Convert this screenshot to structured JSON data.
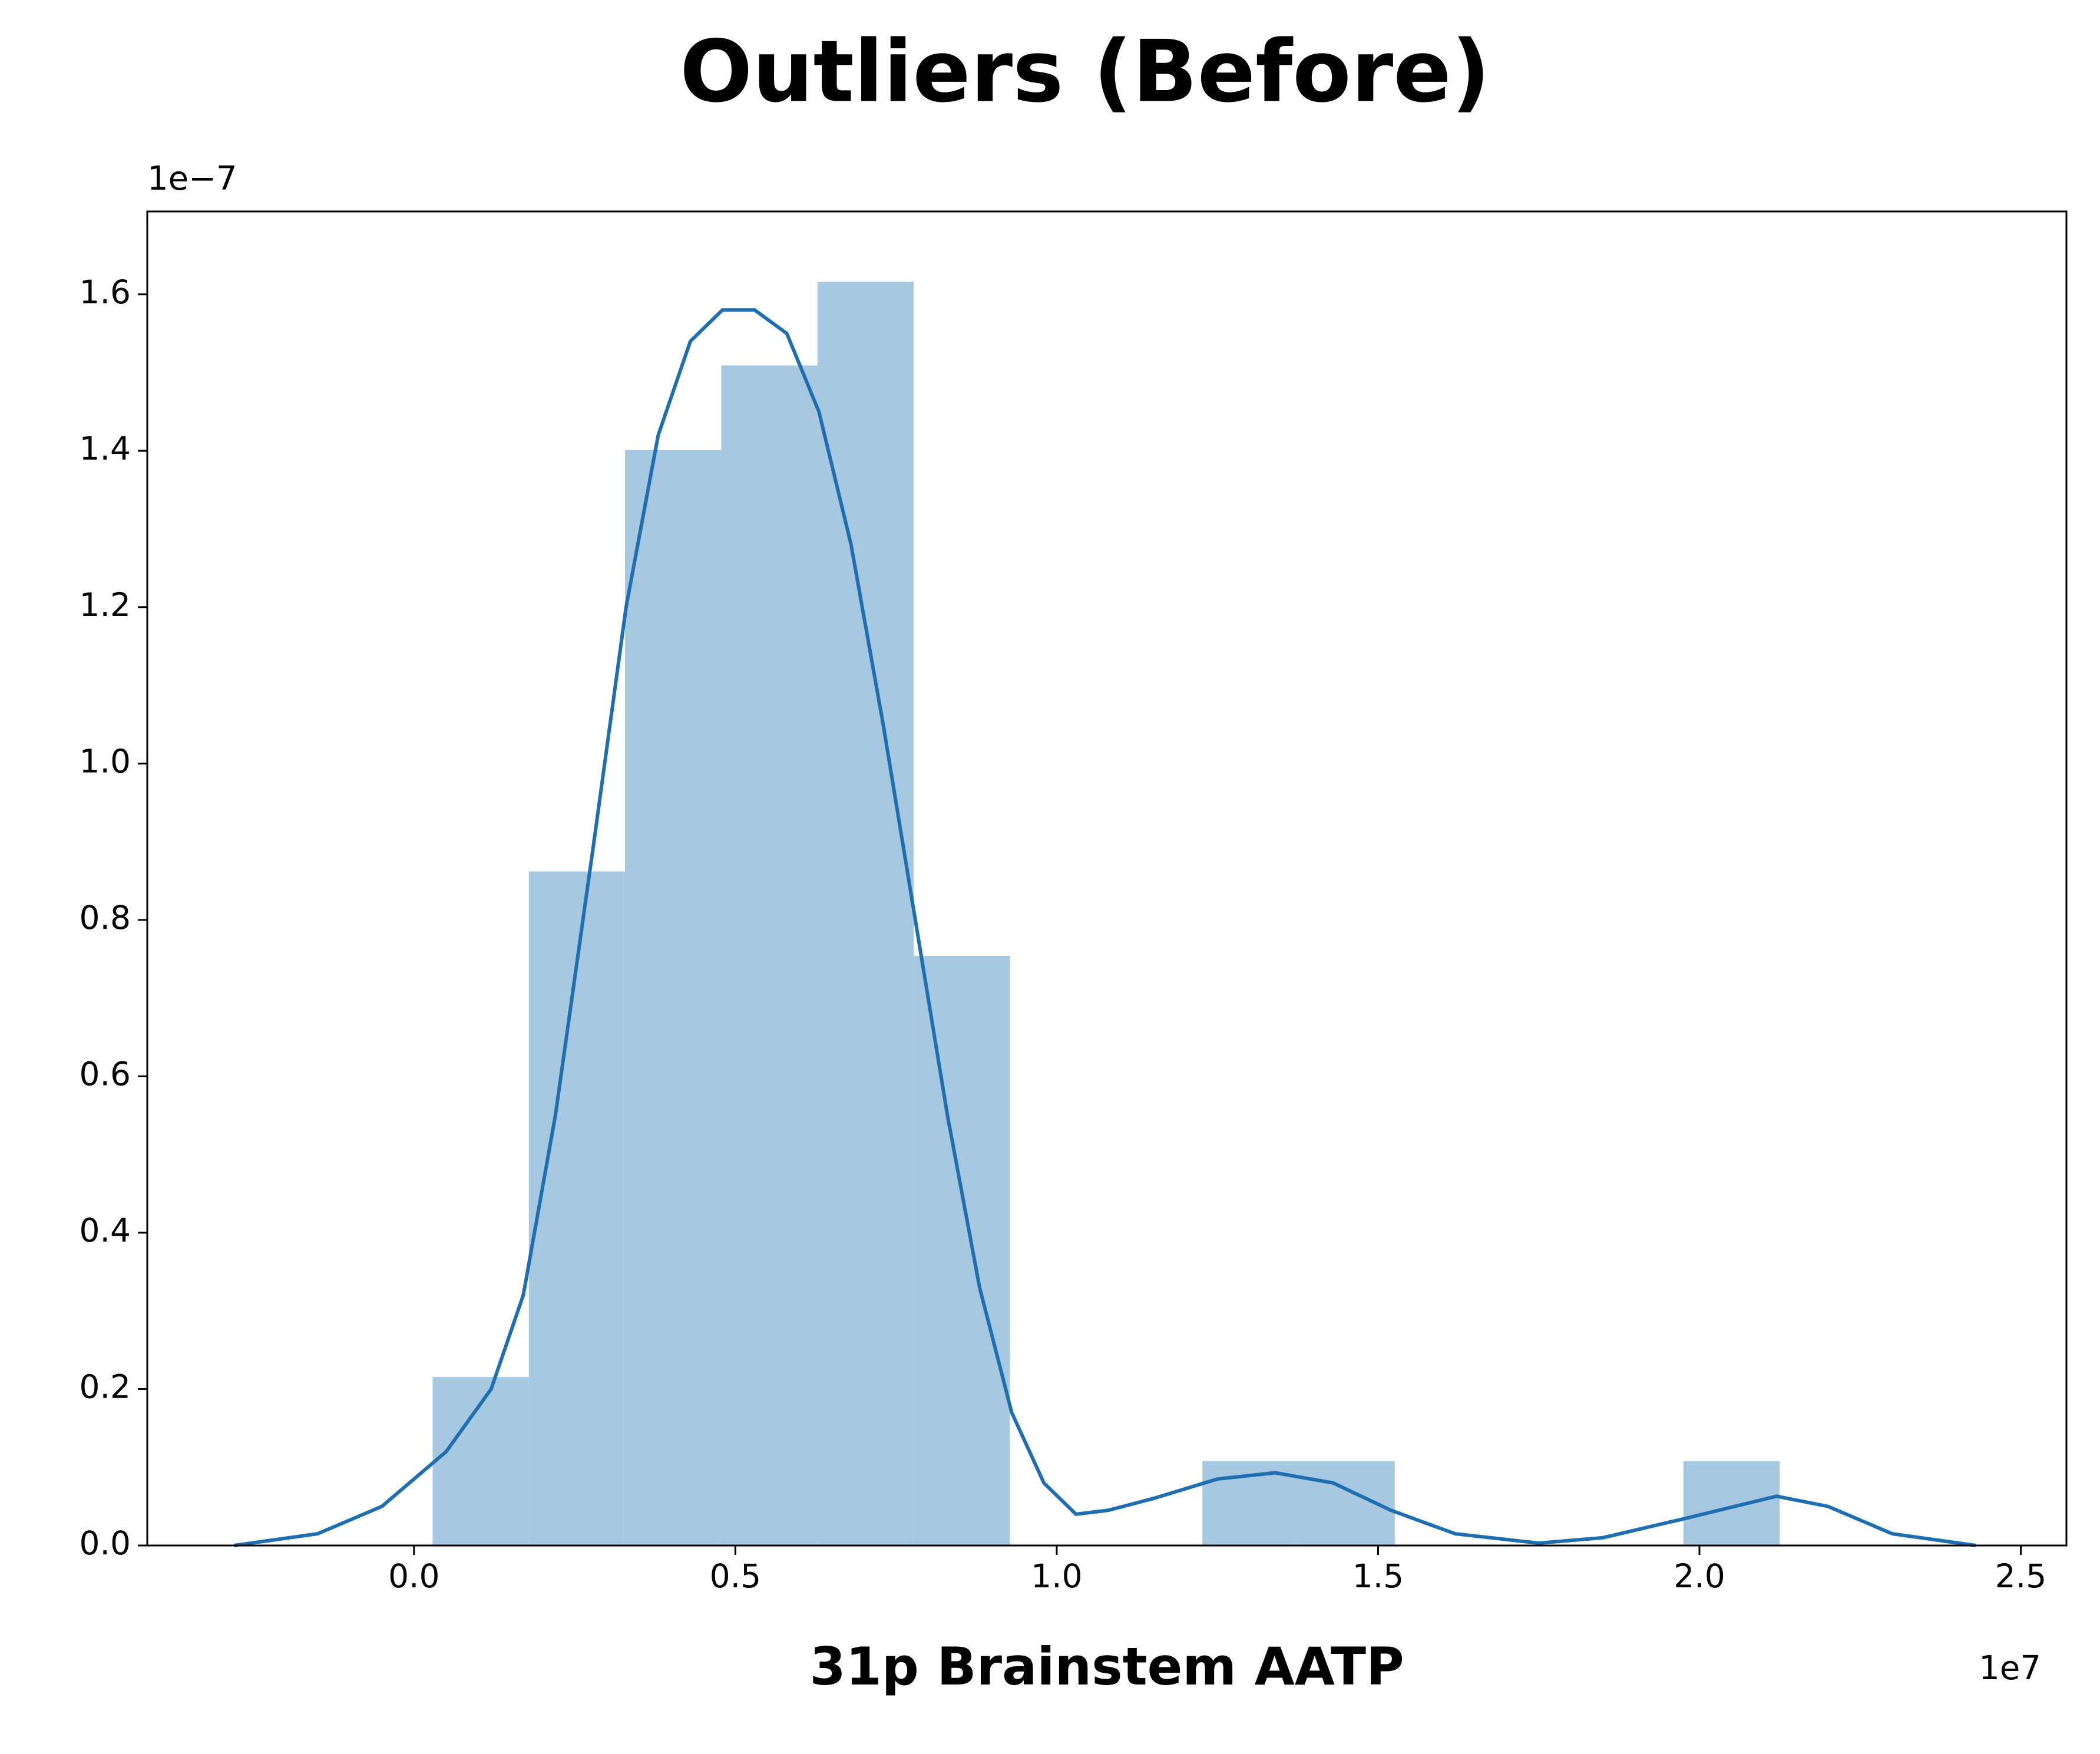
{
  "chart_data": {
    "type": "histogram",
    "title": "Outliers (Before)",
    "x_label": "31p Brainstem AATP",
    "x_offset_label": "1e7",
    "y_offset_label": "1e−7",
    "bins": [
      0.029,
      0.1787,
      0.3284,
      0.4781,
      0.6278,
      0.7775,
      0.9272,
      1.0769,
      1.2266,
      1.3763,
      1.526,
      1.6757,
      1.8254,
      1.9751,
      2.1248
    ],
    "values": [
      0.2155,
      0.862,
      1.401,
      1.509,
      1.616,
      0.754,
      0,
      0,
      0.108,
      0.108,
      0,
      0,
      0,
      0.108
    ],
    "color": "#a6c8e0",
    "kde": {
      "color": "#1f6fb0",
      "x": [
        -0.28,
        -0.15,
        -0.05,
        0.05,
        0.12,
        0.17,
        0.22,
        0.28,
        0.33,
        0.38,
        0.43,
        0.48,
        0.53,
        0.58,
        0.63,
        0.68,
        0.73,
        0.78,
        0.83,
        0.88,
        0.93,
        0.98,
        1.03,
        1.08,
        1.15,
        1.25,
        1.34,
        1.43,
        1.52,
        1.62,
        1.75,
        1.85,
        1.98,
        2.12,
        2.2,
        2.3,
        2.43
      ],
      "y": [
        0.0,
        0.015,
        0.05,
        0.12,
        0.2,
        0.32,
        0.55,
        0.9,
        1.2,
        1.42,
        1.54,
        1.58,
        1.58,
        1.55,
        1.45,
        1.28,
        1.05,
        0.8,
        0.55,
        0.33,
        0.17,
        0.08,
        0.04,
        0.045,
        0.06,
        0.085,
        0.093,
        0.08,
        0.045,
        0.015,
        0.003,
        0.01,
        0.035,
        0.063,
        0.05,
        0.015,
        0.0
      ]
    },
    "xlim": [
      -0.415,
      2.571
    ],
    "ylim": [
      0,
      1.706
    ],
    "xticks": [
      {
        "value": 0,
        "label": "0.0"
      },
      0.5,
      {
        "value": 1,
        "label": "1.0"
      },
      1.5,
      {
        "value": 2,
        "label": "2.0"
      },
      2.5
    ],
    "yticks": [
      {
        "value": 0,
        "label": "0.0"
      },
      0.2,
      0.4,
      0.6,
      0.8,
      {
        "value": 1,
        "label": "1.0"
      },
      1.2,
      1.4,
      1.6
    ],
    "grid": false
  }
}
